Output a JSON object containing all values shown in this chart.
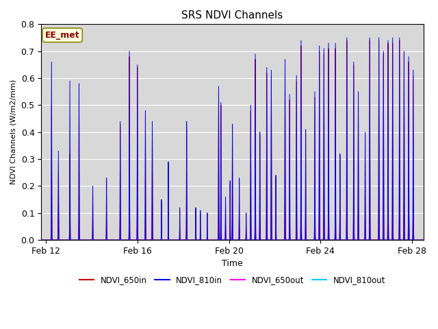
{
  "title": "SRS NDVI Channels",
  "xlabel": "Time",
  "ylabel": "NDVI Channels (W/m2/mm)",
  "ylim": [
    0.0,
    0.8
  ],
  "xlim_days": [
    -0.2,
    16.5
  ],
  "x_tick_labels": [
    "Feb 12",
    "Feb 16",
    "Feb 20",
    "Feb 24",
    "Feb 28"
  ],
  "x_tick_positions": [
    0,
    4,
    8,
    12,
    16
  ],
  "annotation_text": "EE_met",
  "annotation_color": "#8B0000",
  "annotation_bg": "#FFFFE0",
  "background_color": "#d8d8d8",
  "legend_labels": [
    "NDVI_650in",
    "NDVI_810in",
    "NDVI_650out",
    "NDVI_810out"
  ],
  "legend_colors": [
    "#CC0000",
    "#0000EE",
    "#FF00FF",
    "#00CCFF"
  ],
  "spike_events": [
    [
      0.25,
      0.66,
      0.5,
      0.12,
      0.055,
      0.018
    ],
    [
      0.55,
      0.33,
      0.25,
      0.11,
      0.045,
      0.018
    ],
    [
      1.05,
      0.59,
      0.32,
      0.11,
      0.045,
      0.018
    ],
    [
      1.45,
      0.58,
      0.56,
      0.1,
      0.045,
      0.015
    ],
    [
      2.05,
      0.2,
      0.2,
      0.07,
      0.03,
      0.012
    ],
    [
      2.65,
      0.23,
      0.22,
      0.08,
      0.03,
      0.012
    ],
    [
      3.25,
      0.44,
      0.43,
      0.1,
      0.04,
      0.016
    ],
    [
      3.65,
      0.7,
      0.68,
      0.14,
      0.05,
      0.018
    ],
    [
      4.0,
      0.65,
      0.64,
      0.13,
      0.05,
      0.018
    ],
    [
      4.35,
      0.48,
      0.46,
      0.1,
      0.04,
      0.015
    ],
    [
      4.65,
      0.44,
      0.42,
      0.13,
      0.05,
      0.018
    ],
    [
      5.05,
      0.15,
      0.14,
      0.06,
      0.025,
      0.01
    ],
    [
      5.35,
      0.29,
      0.28,
      0.09,
      0.035,
      0.012
    ],
    [
      5.85,
      0.12,
      0.11,
      0.04,
      0.02,
      0.01
    ],
    [
      6.15,
      0.44,
      0.42,
      0.1,
      0.04,
      0.015
    ],
    [
      6.55,
      0.12,
      0.11,
      0.05,
      0.025,
      0.01
    ],
    [
      6.75,
      0.11,
      0.1,
      0.04,
      0.02,
      0.01
    ],
    [
      7.05,
      0.1,
      0.1,
      0.05,
      0.02,
      0.01
    ],
    [
      7.55,
      0.57,
      0.55,
      0.1,
      0.04,
      0.018
    ],
    [
      7.65,
      0.51,
      0.5,
      0.12,
      0.045,
      0.016
    ],
    [
      7.85,
      0.16,
      0.15,
      0.06,
      0.025,
      0.012
    ],
    [
      8.05,
      0.22,
      0.21,
      0.08,
      0.03,
      0.012
    ],
    [
      8.15,
      0.43,
      0.42,
      0.11,
      0.04,
      0.015
    ],
    [
      8.45,
      0.23,
      0.22,
      0.08,
      0.03,
      0.012
    ],
    [
      8.75,
      0.1,
      0.1,
      0.04,
      0.02,
      0.01
    ],
    [
      8.95,
      0.5,
      0.48,
      0.1,
      0.04,
      0.016
    ],
    [
      9.15,
      0.69,
      0.67,
      0.13,
      0.05,
      0.018
    ],
    [
      9.35,
      0.4,
      0.39,
      0.1,
      0.04,
      0.015
    ],
    [
      9.65,
      0.64,
      0.62,
      0.14,
      0.05,
      0.018
    ],
    [
      9.85,
      0.63,
      0.61,
      0.13,
      0.05,
      0.018
    ],
    [
      10.05,
      0.24,
      0.23,
      0.1,
      0.04,
      0.012
    ],
    [
      10.45,
      0.67,
      0.65,
      0.13,
      0.05,
      0.018
    ],
    [
      10.65,
      0.54,
      0.52,
      0.1,
      0.04,
      0.016
    ],
    [
      10.95,
      0.61,
      0.59,
      0.11,
      0.045,
      0.017
    ],
    [
      11.15,
      0.74,
      0.72,
      0.14,
      0.05,
      0.018
    ],
    [
      11.35,
      0.41,
      0.4,
      0.09,
      0.035,
      0.013
    ],
    [
      11.75,
      0.55,
      0.53,
      0.13,
      0.05,
      0.017
    ],
    [
      11.95,
      0.72,
      0.7,
      0.14,
      0.05,
      0.018
    ],
    [
      12.15,
      0.71,
      0.69,
      0.14,
      0.05,
      0.018
    ],
    [
      12.35,
      0.73,
      0.71,
      0.14,
      0.055,
      0.018
    ],
    [
      12.65,
      0.73,
      0.71,
      0.15,
      0.055,
      0.018
    ],
    [
      12.85,
      0.32,
      0.31,
      0.11,
      0.04,
      0.013
    ],
    [
      13.15,
      0.75,
      0.74,
      0.14,
      0.055,
      0.018
    ],
    [
      13.45,
      0.66,
      0.65,
      0.13,
      0.05,
      0.017
    ],
    [
      13.65,
      0.55,
      0.54,
      0.12,
      0.045,
      0.016
    ],
    [
      13.95,
      0.4,
      0.39,
      0.1,
      0.04,
      0.014
    ],
    [
      14.15,
      0.75,
      0.74,
      0.14,
      0.055,
      0.018
    ],
    [
      14.55,
      0.75,
      0.74,
      0.14,
      0.055,
      0.018
    ],
    [
      14.75,
      0.7,
      0.69,
      0.14,
      0.055,
      0.018
    ],
    [
      14.95,
      0.74,
      0.73,
      0.14,
      0.055,
      0.018
    ],
    [
      15.15,
      0.75,
      0.73,
      0.14,
      0.055,
      0.018
    ],
    [
      15.45,
      0.75,
      0.74,
      0.13,
      0.055,
      0.018
    ],
    [
      15.65,
      0.7,
      0.69,
      0.14,
      0.055,
      0.018
    ],
    [
      15.85,
      0.68,
      0.66,
      0.14,
      0.14,
      0.018
    ],
    [
      16.05,
      0.63,
      0.61,
      0.13,
      0.055,
      0.017
    ]
  ]
}
